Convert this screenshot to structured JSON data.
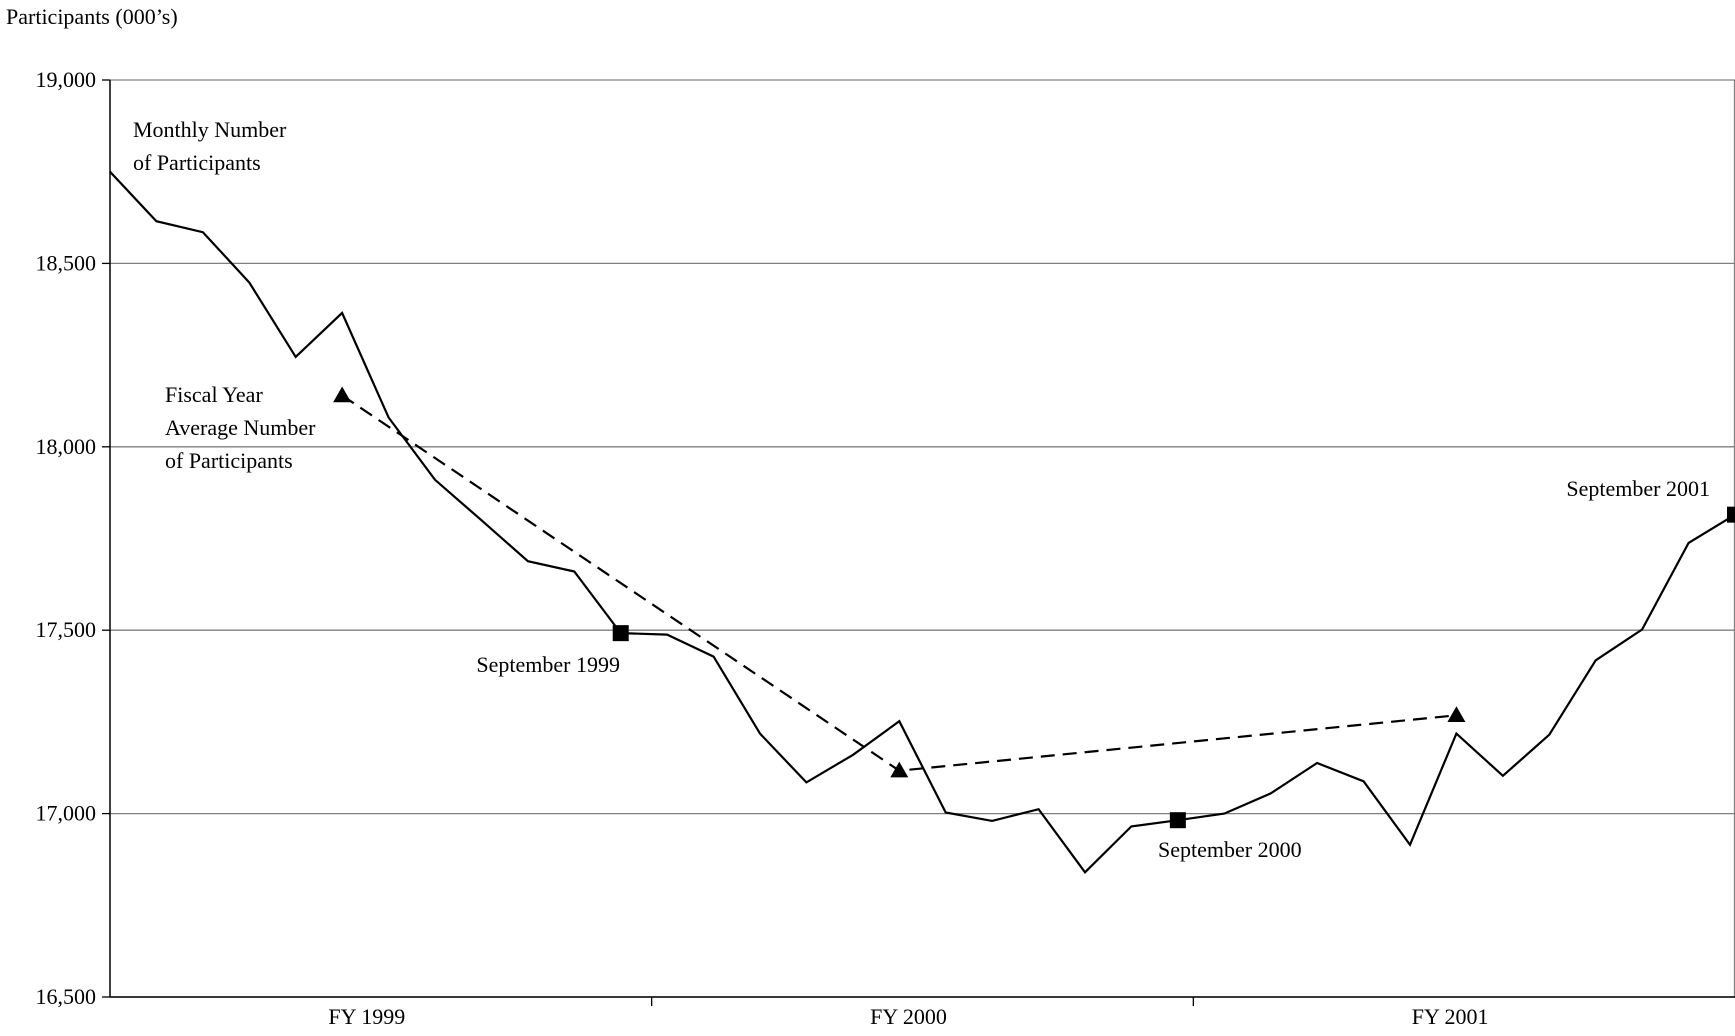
{
  "chart_data": {
    "type": "line",
    "title": "",
    "ylabel": "Participants (000’s)",
    "xlabel": "",
    "ylim": [
      16500,
      19000
    ],
    "yticks": [
      16500,
      17000,
      17500,
      18000,
      18500,
      19000
    ],
    "ytick_labels": [
      "16,500",
      "17,000",
      "17,500",
      "18,000",
      "18,500",
      "19,000"
    ],
    "fiscal_years": [
      "FY 1999",
      "FY 2000",
      "FY 2001"
    ],
    "months_per_year": 12,
    "grid": true,
    "series": [
      {
        "name": "Monthly Number of Participants",
        "style": "solid",
        "values": [
          18750,
          18615,
          18585,
          18448,
          18245,
          18365,
          18080,
          17910,
          17800,
          17688,
          17660,
          17492,
          17488,
          17428,
          17218,
          17085,
          17160,
          17252,
          17003,
          16980,
          17012,
          16840,
          16965,
          16982,
          17000,
          17055,
          17138,
          17088,
          16915,
          17218,
          17103,
          17215,
          17418,
          17502,
          17738,
          17815
        ]
      },
      {
        "name": "Fiscal Year Average Number of Participants",
        "style": "dashed",
        "values": [
          18140,
          17117,
          17268
        ],
        "month_index": [
          5,
          17,
          29
        ]
      }
    ],
    "annotations": [
      {
        "text_lines": [
          "Monthly Number",
          "of Participants"
        ]
      },
      {
        "text_lines": [
          "Fiscal Year",
          "Average Number",
          "of Participants"
        ]
      },
      {
        "text": "September 1999",
        "value": 17492,
        "month_index": 11
      },
      {
        "text": "September 2000",
        "value": 16982,
        "month_index": 23
      },
      {
        "text": "September 2001",
        "value": 17815,
        "month_index": 35
      }
    ]
  }
}
